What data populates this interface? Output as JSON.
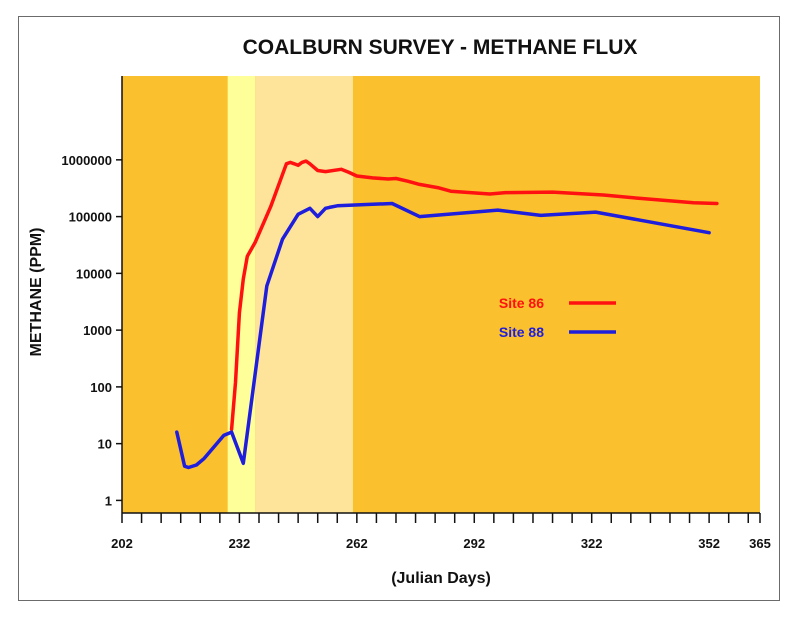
{
  "chart_data": {
    "type": "line",
    "title": "COALBURN SURVEY - METHANE FLUX",
    "xlabel": "(Julian Days)",
    "ylabel": "METHANE (PPM)",
    "x_scale": "linear",
    "y_scale": "log",
    "xlim": [
      202,
      365
    ],
    "ylim": [
      0.6,
      30000000
    ],
    "x_tick_labels": [
      "202",
      "232",
      "262",
      "292",
      "322",
      "352",
      "365"
    ],
    "x_tick_values": [
      202,
      232,
      262,
      292,
      322,
      352,
      365
    ],
    "y_tick_labels": [
      "1",
      "10",
      "100",
      "1000",
      "10000",
      "100000",
      "1000000"
    ],
    "y_tick_values": [
      1,
      10,
      100,
      1000,
      10000,
      100000,
      1000000
    ],
    "shaded_bands": [
      {
        "from": 229,
        "to": 236,
        "color": "#ffff99"
      },
      {
        "from": 236,
        "to": 261,
        "color": "#fde49a"
      }
    ],
    "background_color": "#fbc02d",
    "legend_position": "center-right",
    "grid": false,
    "series": [
      {
        "name": "Site 86",
        "color": "#ff1111",
        "x": [
          230,
          231,
          232,
          233,
          234,
          236,
          240,
          244,
          245,
          246,
          247,
          248,
          249,
          250,
          252,
          254,
          258,
          260,
          262,
          266,
          270,
          272,
          275,
          278,
          283,
          286,
          296,
          300,
          312,
          325,
          334,
          348,
          354
        ],
        "y": [
          18,
          120,
          2000,
          8000,
          20000,
          35000,
          150000,
          850000,
          900000,
          850000,
          800000,
          900000,
          950000,
          850000,
          650000,
          620000,
          680000,
          600000,
          520000,
          480000,
          460000,
          470000,
          420000,
          370000,
          320000,
          280000,
          250000,
          265000,
          270000,
          240000,
          210000,
          175000,
          170000
        ]
      },
      {
        "name": "Site 88",
        "color": "#1e1edc",
        "x": [
          216,
          218,
          219,
          221,
          223,
          228,
          230,
          233,
          239,
          243,
          247,
          250,
          252,
          254,
          255,
          257,
          266,
          271,
          278,
          298,
          309,
          323,
          352
        ],
        "y": [
          16,
          4,
          3.8,
          4.2,
          5.5,
          14,
          16,
          4.5,
          6000,
          40000,
          110000,
          140000,
          100000,
          140000,
          145000,
          155000,
          165000,
          170000,
          100000,
          130000,
          105000,
          120000,
          52000
        ]
      }
    ]
  }
}
